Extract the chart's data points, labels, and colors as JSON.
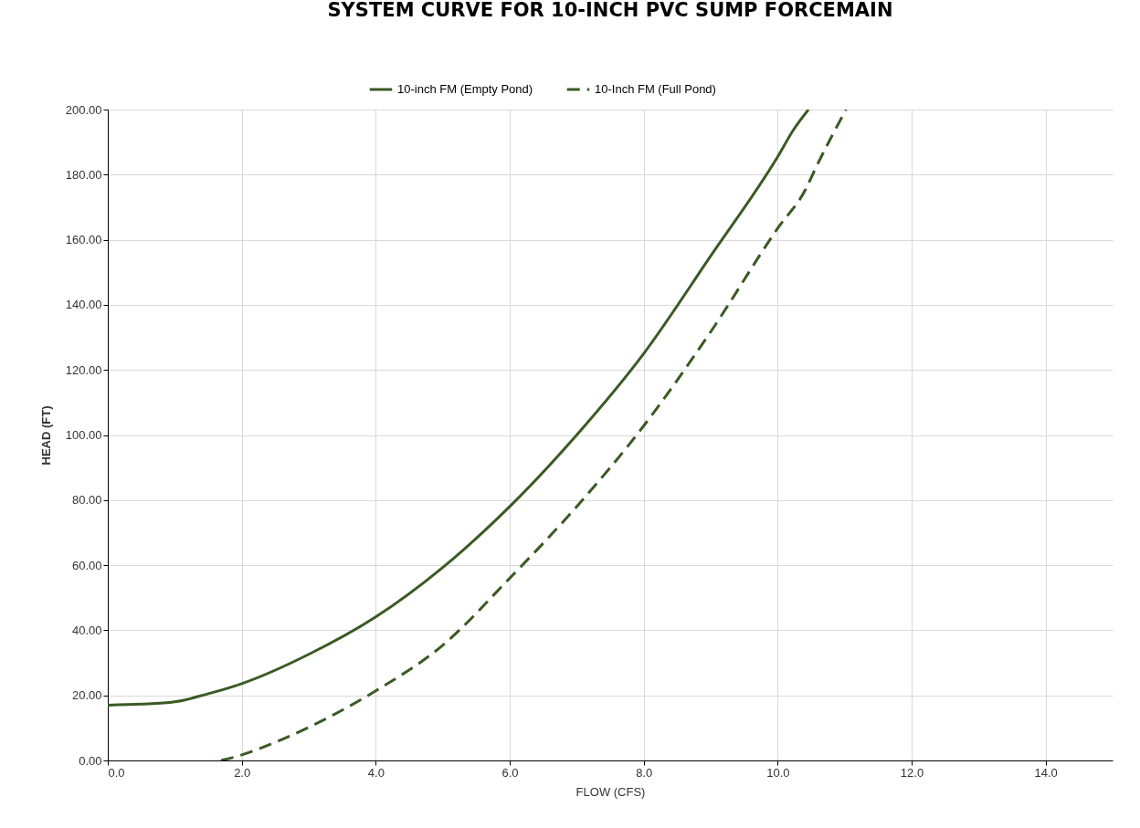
{
  "chart_data": {
    "type": "line",
    "title": "SYSTEM CURVE FOR 10-INCH PVC SUMP FORCEMAIN",
    "xlabel": "FLOW (CFS)",
    "ylabel": "HEAD (FT)",
    "xlim": [
      0,
      15
    ],
    "ylim": [
      0,
      200
    ],
    "xticks": [
      {
        "value": 0,
        "label": "0.0"
      },
      {
        "value": 2,
        "label": "2.0"
      },
      {
        "value": 4,
        "label": "4.0"
      },
      {
        "value": 6,
        "label": "6.0"
      },
      {
        "value": 8,
        "label": "8.0"
      },
      {
        "value": 10,
        "label": "10.0"
      },
      {
        "value": 12,
        "label": "12.0"
      },
      {
        "value": 14,
        "label": "14.0"
      }
    ],
    "yticks": [
      {
        "value": 0,
        "label": "0.00"
      },
      {
        "value": 20,
        "label": "20.00"
      },
      {
        "value": 40,
        "label": "40.00"
      },
      {
        "value": 60,
        "label": "60.00"
      },
      {
        "value": 80,
        "label": "80.00"
      },
      {
        "value": 100,
        "label": "100.00"
      },
      {
        "value": 120,
        "label": "120.00"
      },
      {
        "value": 140,
        "label": "140.00"
      },
      {
        "value": 160,
        "label": "160.00"
      },
      {
        "value": 180,
        "label": "180.00"
      },
      {
        "value": 200,
        "label": "200.00"
      }
    ],
    "grid": true,
    "legend": "top",
    "marker": "none",
    "series": [
      {
        "name": "10-inch FM (Empty Pond)",
        "color": "#3a5a24",
        "line_style": "solid",
        "x": [
          0,
          0.5,
          1,
          1.5,
          2,
          3,
          4,
          5,
          6,
          7,
          8,
          9,
          10,
          10.24,
          10.46
        ],
        "values": [
          17,
          17.3,
          18,
          20.5,
          23.6,
          32.6,
          44.1,
          59.3,
          78,
          100,
          125,
          155,
          185.5,
          193.9,
          200
        ]
      },
      {
        "name": "10-Inch FM (Full Pond)",
        "color": "#3a5a24",
        "line_style": "dashed",
        "x": [
          1.69,
          2,
          2.5,
          3,
          4,
          5,
          6,
          7,
          8,
          9,
          10,
          10.42,
          10.56,
          11.02
        ],
        "values": [
          0,
          1.7,
          5.6,
          10.2,
          21.4,
          35.4,
          56,
          78,
          102.8,
          131.7,
          163.5,
          175.6,
          181.7,
          200
        ]
      }
    ]
  }
}
